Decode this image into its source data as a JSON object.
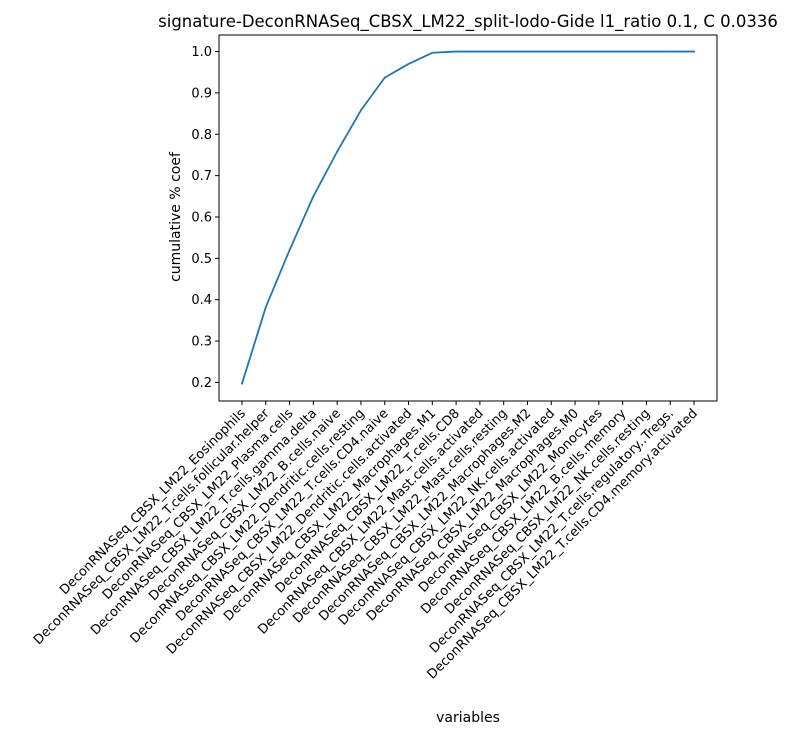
{
  "chart_data": {
    "type": "line",
    "title": "signature-DeconRNASeq_CBSX_LM22_split-lodo-Gide l1_ratio 0.1, C 0.0336",
    "xlabel": "variables",
    "ylabel": "cumulative % coef",
    "grid": false,
    "legend": "none",
    "ylim": [
      0.155,
      1.04
    ],
    "yticks": [
      0.2,
      0.3,
      0.4,
      0.5,
      0.6,
      0.7,
      0.8,
      0.9,
      1.0
    ],
    "ytick_labels": [
      "0.2",
      "0.3",
      "0.4",
      "0.5",
      "0.6",
      "0.7",
      "0.8",
      "0.9",
      "1.0"
    ],
    "categories": [
      "DeconRNASeq_CBSX_LM22_Eosinophils",
      "DeconRNASeq_CBSX_LM22_T.cells.follicular.helper",
      "DeconRNASeq_CBSX_LM22_Plasma.cells",
      "DeconRNASeq_CBSX_LM22_T.cells.gamma.delta",
      "DeconRNASeq_CBSX_LM22_B.cells.naive",
      "DeconRNASeq_CBSX_LM22_Dendritic.cells.resting",
      "DeconRNASeq_CBSX_LM22_T.cells.CD4.naive",
      "DeconRNASeq_CBSX_LM22_Dendritic.cells.activated",
      "DeconRNASeq_CBSX_LM22_Macrophages.M1",
      "DeconRNASeq_CBSX_LM22_T.cells.CD8",
      "DeconRNASeq_CBSX_LM22_Mast.cells.activated",
      "DeconRNASeq_CBSX_LM22_Mast.cells.resting",
      "DeconRNASeq_CBSX_LM22_Macrophages.M2",
      "DeconRNASeq_CBSX_LM22_NK.cells.activated",
      "DeconRNASeq_CBSX_LM22_Macrophages.M0",
      "DeconRNASeq_CBSX_LM22_Monocytes",
      "DeconRNASeq_CBSX_LM22_B.cells.memory",
      "DeconRNASeq_CBSX_LM22_NK.cells.resting",
      "DeconRNASeq_CBSX_LM22_T.cells.regulatory..Tregs.",
      "DeconRNASeq_CBSX_LM22_T.cells.CD4.memory.activated"
    ],
    "series": [
      {
        "color": "#1f77b4",
        "values": [
          0.197,
          0.382,
          0.52,
          0.65,
          0.758,
          0.858,
          0.937,
          0.97,
          0.997,
          1.0,
          1.0,
          1.0,
          1.0,
          1.0,
          1.0,
          1.0,
          1.0,
          1.0,
          1.0,
          1.0
        ]
      }
    ]
  }
}
